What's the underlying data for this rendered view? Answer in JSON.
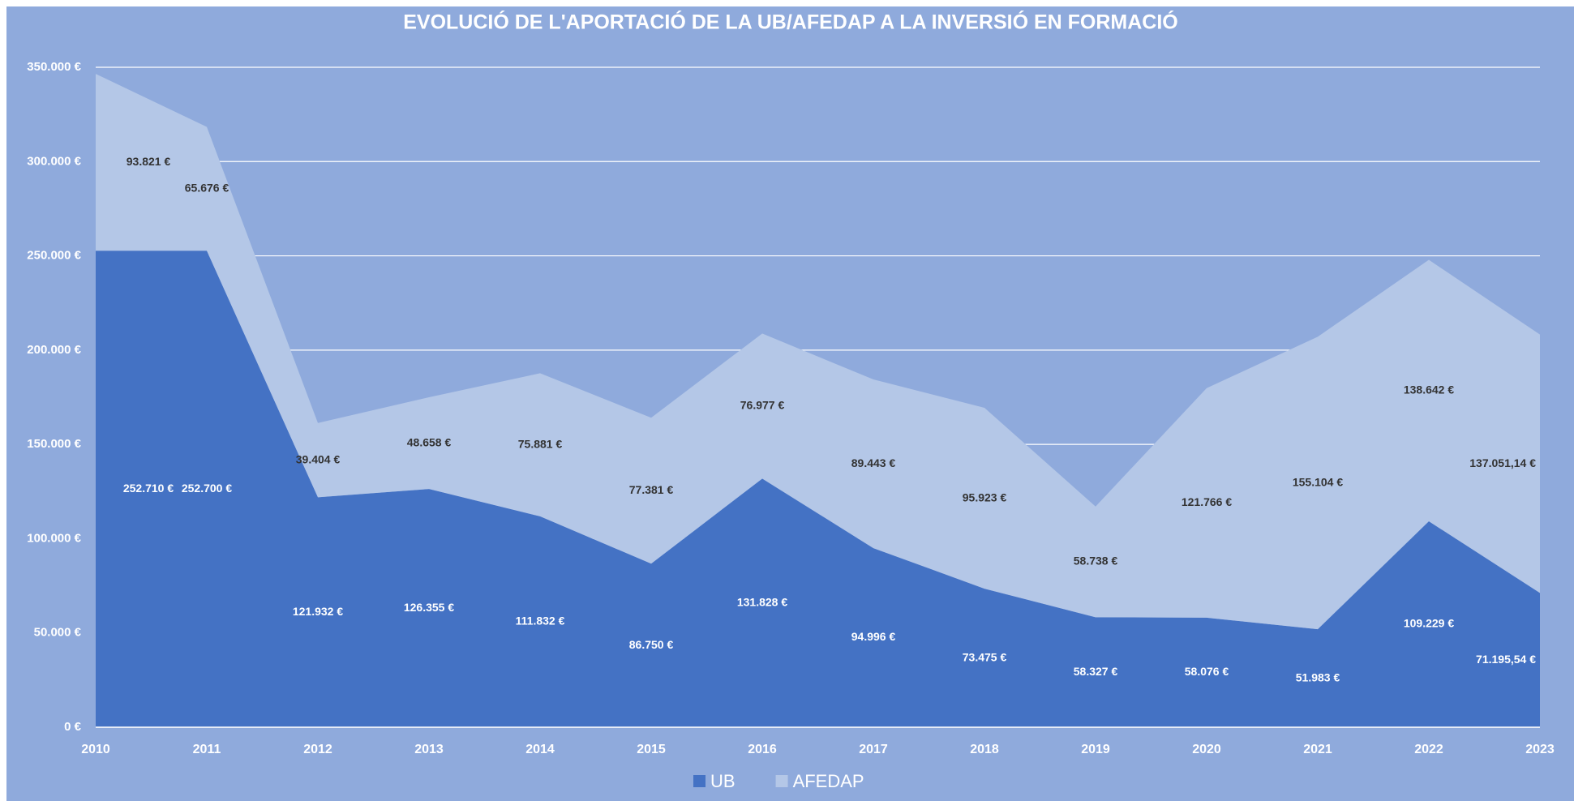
{
  "chart_data": {
    "type": "stacked-area",
    "title": "EVOLUCIÓ DE L'APORTACIÓ DE LA UB/AFEDAP A LA INVERSIÓ EN FORMACIÓ",
    "categories": [
      "2010",
      "2011",
      "2012",
      "2013",
      "2014",
      "2015",
      "2016",
      "2017",
      "2018",
      "2019",
      "2020",
      "2021",
      "2022",
      "2023"
    ],
    "series": [
      {
        "name": "UB",
        "color": "#4472c4",
        "values": [
          252710,
          252700,
          121932,
          126355,
          111832,
          86750,
          131828,
          94996,
          73475,
          58327,
          58076,
          51983,
          109229,
          71195.54
        ],
        "value_labels": [
          "252.710 €",
          "252.700 €",
          "121.932 €",
          "126.355 €",
          "111.832 €",
          "86.750 €",
          "131.828 €",
          "94.996 €",
          "73.475 €",
          "58.327 €",
          "58.076 €",
          "51.983 €",
          "109.229 €",
          "71.195,54 €"
        ]
      },
      {
        "name": "AFEDAP",
        "color": "#b4c7e7",
        "values": [
          93821,
          65676,
          39404,
          48658,
          75881,
          77381,
          76977,
          89443,
          95923,
          58738,
          121766,
          155104,
          138642,
          137051.14
        ],
        "value_labels": [
          "93.821 €",
          "65.676 €",
          "39.404 €",
          "48.658 €",
          "75.881 €",
          "77.381 €",
          "76.977 €",
          "89.443 €",
          "95.923 €",
          "58.738 €",
          "121.766 €",
          "155.104 €",
          "138.642 €",
          "137.051,14 €"
        ]
      }
    ],
    "ylim": [
      0,
      350000
    ],
    "yticks": [
      {
        "value": 0,
        "label": "0 €"
      },
      {
        "value": 50000,
        "label": "50.000 €"
      },
      {
        "value": 100000,
        "label": "100.000 €"
      },
      {
        "value": 150000,
        "label": "150.000 €"
      },
      {
        "value": 200000,
        "label": "200.000 €"
      },
      {
        "value": 250000,
        "label": "250.000 €"
      },
      {
        "value": 300000,
        "label": "300.000 €"
      },
      {
        "value": 350000,
        "label": "350.000 €"
      }
    ],
    "grid": true,
    "legend": "bottom"
  }
}
